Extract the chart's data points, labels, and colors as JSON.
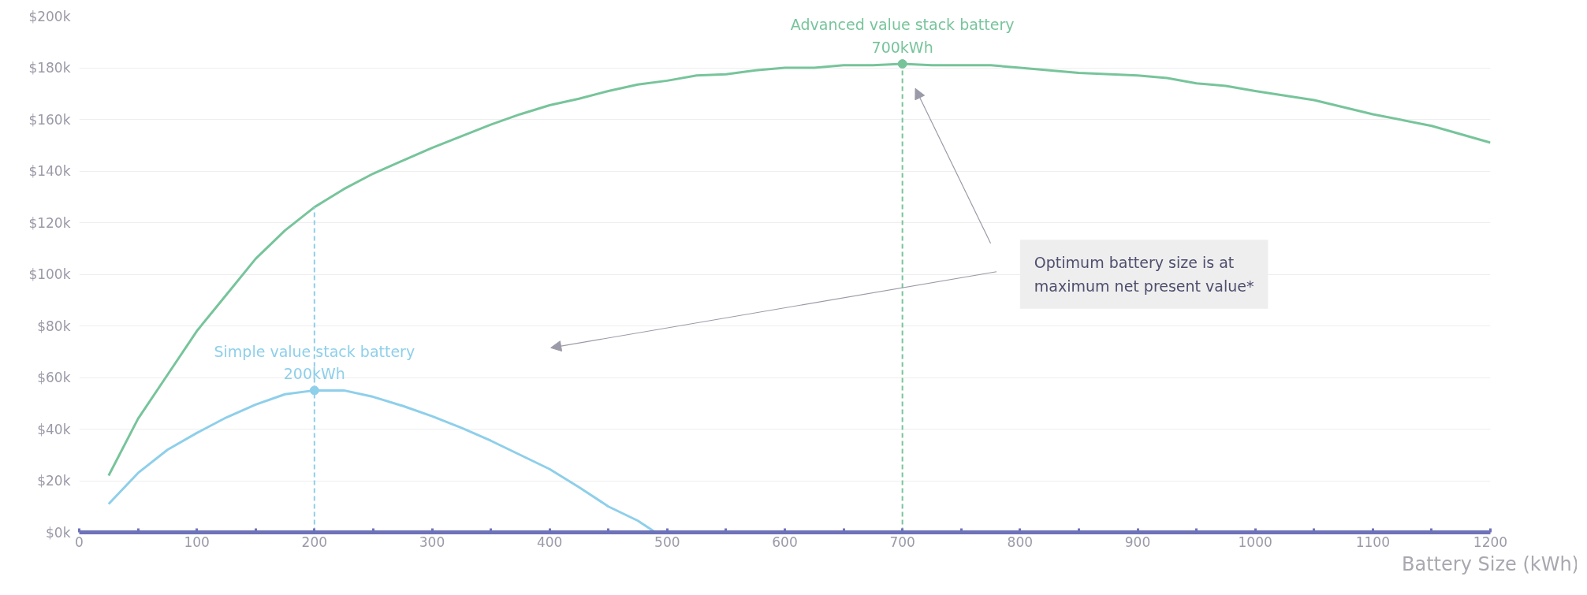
{
  "chart_data": {
    "type": "line",
    "xlabel": "Battery Size (kWh)",
    "series": [
      {
        "color": "#77c49b",
        "x": [
          25,
          50,
          75,
          100,
          125,
          150,
          175,
          200,
          225,
          250,
          275,
          300,
          325,
          350,
          375,
          400,
          425,
          450,
          475,
          500,
          525,
          550,
          575,
          600,
          625,
          650,
          675,
          700,
          725,
          750,
          775,
          800,
          850,
          900,
          925,
          950,
          975,
          1000,
          1050,
          1100,
          1150,
          1200
        ],
        "values": [
          22,
          44,
          61,
          78,
          92,
          106,
          117,
          126,
          133,
          139,
          144,
          149,
          153.5,
          158,
          162,
          165.5,
          168,
          171,
          173.5,
          175,
          177,
          177.5,
          179,
          180,
          180,
          181,
          181,
          181.5,
          181,
          181,
          181,
          180,
          178,
          177,
          176,
          174,
          173,
          171,
          167.5,
          162,
          157.5,
          151
        ]
      },
      {
        "color": "#8ecfea",
        "x": [
          25,
          50,
          75,
          100,
          125,
          150,
          175,
          200,
          225,
          250,
          275,
          300,
          325,
          350,
          375,
          400,
          425,
          450,
          475,
          490
        ],
        "values": [
          11,
          23,
          32,
          38.5,
          44.5,
          49.5,
          53.5,
          55,
          55,
          52.5,
          49,
          45,
          40.5,
          35.5,
          30,
          24.5,
          17.5,
          10,
          4.5,
          0
        ]
      }
    ],
    "annotations": [
      {
        "text": "Advanced value stack battery\n700kWh",
        "x": 700,
        "y": 181.5
      },
      {
        "text": "Simple value stack battery\n200kWh",
        "x": 200,
        "y": 55
      },
      "Optimum battery size is at\nmaximum net present value*"
    ],
    "ref_lines": [
      {
        "axis": "x",
        "value": 700,
        "color": "#77c49b",
        "line_style": "dashed"
      },
      {
        "axis": "x",
        "value": 200,
        "color": "#8ecfea",
        "line_style": "dashed"
      }
    ],
    "xlim": [
      0,
      1200
    ],
    "ylim": [
      0,
      200
    ],
    "xticks": [
      0,
      {
        "value": 50,
        "label": null
      },
      100,
      {
        "value": 150,
        "label": null
      },
      200,
      {
        "value": 250,
        "label": null
      },
      300,
      {
        "value": 350,
        "label": null
      },
      400,
      {
        "value": 450,
        "label": null
      },
      500,
      {
        "value": 550,
        "label": null
      },
      600,
      {
        "value": 650,
        "label": null
      },
      700,
      {
        "value": 750,
        "label": null
      },
      800,
      {
        "value": 850,
        "label": null
      },
      900,
      {
        "value": 950,
        "label": null
      },
      1000,
      {
        "value": 1050,
        "label": null
      },
      1100,
      {
        "value": 1150,
        "label": null
      },
      1200
    ],
    "yticks": [
      {
        "value": 0,
        "label": "$0k"
      },
      {
        "value": 20,
        "label": "$20k"
      },
      {
        "value": 40,
        "label": "$40k"
      },
      {
        "value": 60,
        "label": "$60k"
      },
      {
        "value": 80,
        "label": "$80k"
      },
      {
        "value": 100,
        "label": "$100k"
      },
      {
        "value": 120,
        "label": "$120k"
      },
      {
        "value": 140,
        "label": "$140k"
      },
      {
        "value": 160,
        "label": "$160k"
      },
      {
        "value": 180,
        "label": "$180k"
      },
      {
        "value": 200,
        "label": "$200k"
      }
    ],
    "grid": "y",
    "marker": "none",
    "line_style": "solid"
  }
}
